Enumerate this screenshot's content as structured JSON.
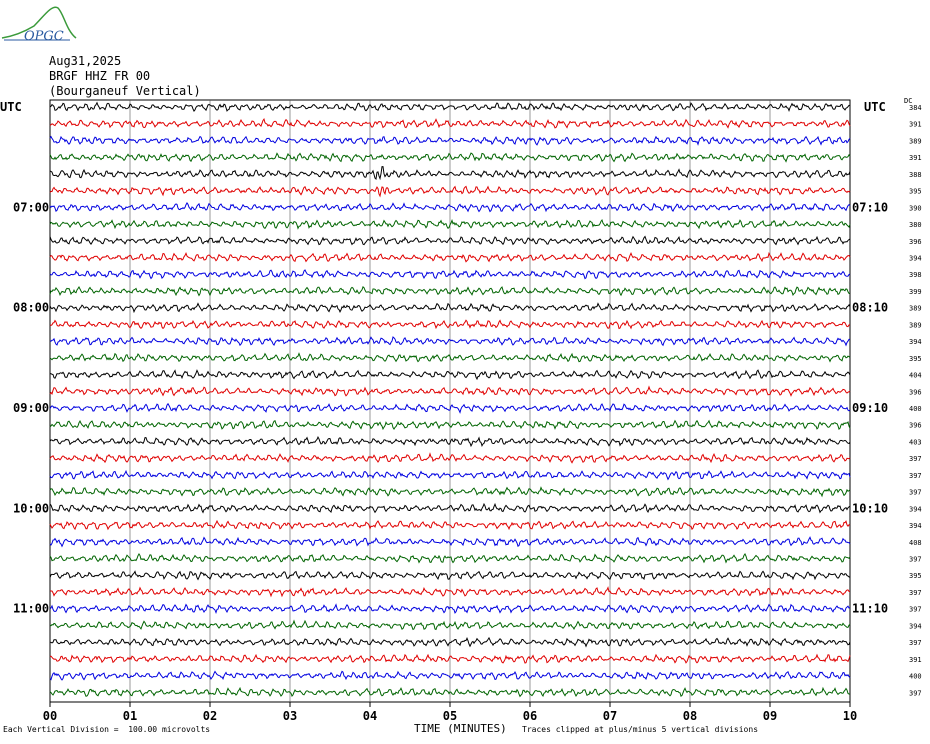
{
  "logo": {
    "text": "OPGC"
  },
  "header": {
    "date": "Aug31,2025",
    "station": "BRGF HHZ FR 00",
    "location": "(Bourganeuf Vertical)"
  },
  "left_axis_label": "UTC",
  "right_axis_label": "UTC",
  "dc_label": "DC",
  "footer": {
    "scale": "Each Vertical Division =  100.00 microvolts",
    "xlabel": "TIME (MINUTES)",
    "clip_note": "Traces clipped at plus/minus 5 vertical divisions"
  },
  "colors": {
    "trace_cycle": [
      "#000000",
      "#e00000",
      "#0000e0",
      "#006400"
    ]
  },
  "chart_data": {
    "type": "line",
    "title": "BRGF HHZ FR 00",
    "xlabel": "TIME (MINUTES)",
    "xlim": [
      0,
      10
    ],
    "x_ticks": [
      "00",
      "01",
      "02",
      "03",
      "04",
      "05",
      "06",
      "07",
      "08",
      "09",
      "10"
    ],
    "trace_count": 36,
    "left_hour_labels": [
      {
        "row": 6,
        "text": "07:00"
      },
      {
        "row": 12,
        "text": "08:00"
      },
      {
        "row": 18,
        "text": "09:00"
      },
      {
        "row": 24,
        "text": "10:00"
      },
      {
        "row": 30,
        "text": "11:00"
      }
    ],
    "right_hour_labels": [
      {
        "row": 6,
        "text": "07:10"
      },
      {
        "row": 12,
        "text": "08:10"
      },
      {
        "row": 18,
        "text": "09:10"
      },
      {
        "row": 24,
        "text": "10:10"
      },
      {
        "row": 30,
        "text": "11:10"
      }
    ],
    "dc_offsets": [
      384,
      391,
      389,
      391,
      388,
      395,
      390,
      380,
      396,
      394,
      398,
      399,
      389,
      389,
      394,
      395,
      404,
      396,
      400,
      396,
      403,
      397,
      397,
      397,
      394,
      394,
      408,
      397,
      395,
      397,
      397,
      394,
      397,
      391,
      400,
      397
    ],
    "events": [
      {
        "row": 4,
        "minute": 4.15,
        "amplitude": 3.0
      },
      {
        "row": 5,
        "minute": 4.15,
        "amplitude": 1.8
      }
    ],
    "grid": true
  }
}
